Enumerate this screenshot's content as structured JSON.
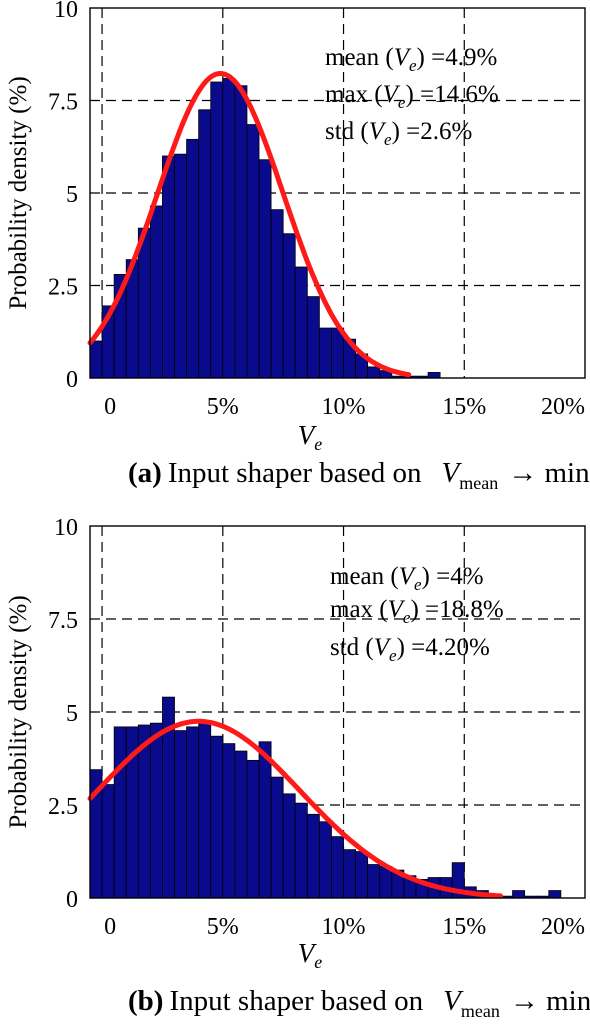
{
  "chart_data": [
    {
      "type": "bar",
      "panel_label": "(a)",
      "caption_text": "Input shaper based on",
      "caption_var": "V",
      "caption_sub": "mean",
      "caption_arrow": "→ min",
      "xlabel": "V",
      "xlabel_sub": "e",
      "ylabel": "Probability density (%)",
      "xlim": [
        -0.005,
        0.2
      ],
      "ylim": [
        0,
        10
      ],
      "xticks": [
        0,
        0.05,
        0.1,
        0.15,
        0.2
      ],
      "xtick_labels": [
        "0",
        "5%",
        "10%",
        "15%",
        "20%"
      ],
      "yticks": [
        0,
        2.5,
        5,
        7.5,
        10
      ],
      "ytick_labels": [
        "0",
        "2.5",
        "5",
        "7.5",
        "10"
      ],
      "grid": "dashed",
      "bin_width": 0.005,
      "bin_start": -0.005,
      "values": [
        1.0,
        1.95,
        2.8,
        3.2,
        4.05,
        4.65,
        6.0,
        6.05,
        6.45,
        7.25,
        8.0,
        8.1,
        7.9,
        6.85,
        5.9,
        4.55,
        3.9,
        3.0,
        2.2,
        1.35,
        1.35,
        1.05,
        0.65,
        0.3,
        0.2,
        0.05,
        0.05,
        0.05,
        0.15
      ],
      "fit_curve": {
        "type": "normal",
        "mean": 0.049,
        "std": 0.026,
        "scale": 8.23,
        "x_range": [
          -0.005,
          0.127
        ],
        "color": "#ff1a1a"
      },
      "bar_color": "#0a0a8c",
      "stats": [
        {
          "prefix": "mean (",
          "var": "V",
          "sub": "e",
          "suffix": ") =4.9%"
        },
        {
          "prefix": "max (",
          "var": "V",
          "sub": "e",
          "suffix": ") =14.6%"
        },
        {
          "prefix": "std (",
          "var": "V",
          "sub": "e",
          "suffix": ") =2.6%"
        }
      ]
    },
    {
      "type": "bar",
      "panel_label": "(b)",
      "caption_text": "Input shaper based on",
      "caption_var": "V",
      "caption_sub": "mean",
      "caption_arrow": "→ min",
      "xlabel": "V",
      "xlabel_sub": "e",
      "ylabel": "Probability density (%)",
      "xlim": [
        -0.005,
        0.2
      ],
      "ylim": [
        0,
        10
      ],
      "xticks": [
        0,
        0.05,
        0.1,
        0.15,
        0.2
      ],
      "xtick_labels": [
        "0",
        "5%",
        "10%",
        "15%",
        "20%"
      ],
      "yticks": [
        0,
        2.5,
        5,
        7.5,
        10
      ],
      "ytick_labels": [
        "0",
        "2.5",
        "5",
        "7.5",
        "10"
      ],
      "grid": "dashed",
      "bin_width": 0.005,
      "bin_start": -0.005,
      "values": [
        3.45,
        3.05,
        4.6,
        4.6,
        4.65,
        4.7,
        5.4,
        4.5,
        4.6,
        4.75,
        4.35,
        4.15,
        3.95,
        3.7,
        4.2,
        3.25,
        2.8,
        2.55,
        2.25,
        2.05,
        1.65,
        1.3,
        1.25,
        0.9,
        0.85,
        0.75,
        0.6,
        0.5,
        0.55,
        0.55,
        0.95,
        0.3,
        0.2,
        0.05,
        0.05,
        0.2,
        0.05,
        0.05,
        0.2
      ],
      "fit_curve": {
        "type": "normal",
        "mean": 0.04,
        "std": 0.042,
        "scale": 4.75,
        "x_range": [
          -0.005,
          0.165
        ],
        "color": "#ff1a1a"
      },
      "bar_color": "#0a0a8c",
      "stats": [
        {
          "prefix": "mean (",
          "var": "V",
          "sub": "e",
          "suffix": ") =4%"
        },
        {
          "prefix": "max (",
          "var": "V",
          "sub": "e",
          "suffix": ") =18.8%"
        },
        {
          "prefix": "std (",
          "var": "V",
          "sub": "e",
          "suffix": ") =4.20%"
        }
      ]
    }
  ]
}
